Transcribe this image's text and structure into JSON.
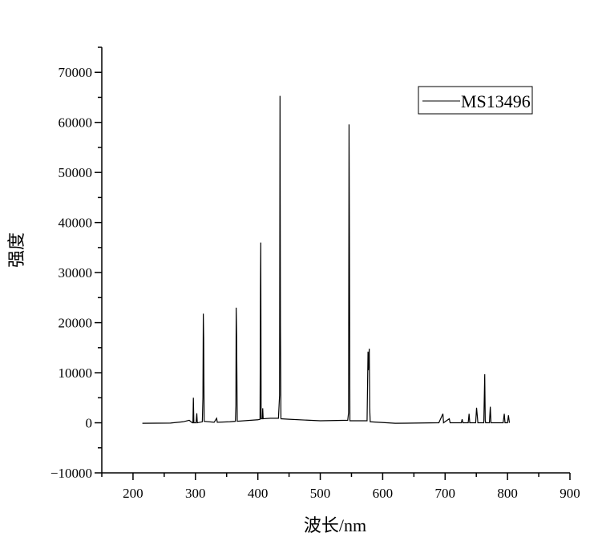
{
  "chart_data": {
    "type": "line",
    "title": "",
    "xlabel": "波长/nm",
    "ylabel": "强度",
    "xlim": [
      150,
      900
    ],
    "ylim": [
      -10000,
      75000
    ],
    "xticks": [
      200,
      300,
      400,
      500,
      600,
      700,
      800,
      900
    ],
    "yticks": [
      -10000,
      0,
      10000,
      20000,
      30000,
      40000,
      50000,
      60000,
      70000
    ],
    "xtick_labels": [
      "200",
      "300",
      "400",
      "500",
      "600",
      "700",
      "800",
      "900"
    ],
    "ytick_labels": [
      "−10000",
      "0",
      "10000",
      "20000",
      "30000",
      "40000",
      "50000",
      "60000",
      "70000"
    ],
    "grid": false,
    "legend": "top-right",
    "color": "#000000",
    "series": [
      {
        "name": "MS13496",
        "points": [
          [
            215,
            -100
          ],
          [
            260,
            -50
          ],
          [
            280,
            200
          ],
          [
            290,
            500
          ],
          [
            295,
            0
          ],
          [
            296,
            0
          ],
          [
            296.7,
            5000
          ],
          [
            297.5,
            0
          ],
          [
            301,
            0
          ],
          [
            302.2,
            1900
          ],
          [
            303,
            0
          ],
          [
            311,
            200
          ],
          [
            312,
            5000
          ],
          [
            312.6,
            21800
          ],
          [
            313.2,
            17000
          ],
          [
            314,
            300
          ],
          [
            330,
            100
          ],
          [
            334,
            900
          ],
          [
            335,
            100
          ],
          [
            355,
            200
          ],
          [
            364,
            300
          ],
          [
            364.8,
            3500
          ],
          [
            365.3,
            23000
          ],
          [
            366,
            17500
          ],
          [
            367,
            300
          ],
          [
            400,
            600
          ],
          [
            403.5,
            700
          ],
          [
            404.2,
            27000
          ],
          [
            404.7,
            36000
          ],
          [
            405.3,
            800
          ],
          [
            407.2,
            800
          ],
          [
            407.8,
            2900
          ],
          [
            408.5,
            800
          ],
          [
            420,
            900
          ],
          [
            433,
            900
          ],
          [
            434.8,
            5500
          ],
          [
            435.5,
            65300
          ],
          [
            436.2,
            19500
          ],
          [
            437,
            800
          ],
          [
            450,
            700
          ],
          [
            500,
            400
          ],
          [
            544,
            500
          ],
          [
            545.3,
            2000
          ],
          [
            546.1,
            59600
          ],
          [
            546.7,
            38000
          ],
          [
            547.5,
            400
          ],
          [
            575,
            400
          ],
          [
            576.5,
            14200
          ],
          [
            577,
            10500
          ],
          [
            578.5,
            14800
          ],
          [
            579.2,
            3000
          ],
          [
            580,
            200
          ],
          [
            620,
            -100
          ],
          [
            690,
            0
          ],
          [
            696.5,
            1800
          ],
          [
            697.5,
            0
          ],
          [
            706.7,
            800
          ],
          [
            708,
            0
          ],
          [
            726,
            0
          ],
          [
            727.3,
            700
          ],
          [
            728.5,
            0
          ],
          [
            737,
            0
          ],
          [
            738.4,
            1800
          ],
          [
            739.5,
            0
          ],
          [
            749,
            0
          ],
          [
            750.4,
            3000
          ],
          [
            751.5,
            1500
          ],
          [
            752.5,
            0
          ],
          [
            762,
            0
          ],
          [
            763.5,
            9700
          ],
          [
            764.3,
            500
          ],
          [
            765,
            0
          ],
          [
            771,
            0
          ],
          [
            772.4,
            3200
          ],
          [
            773.5,
            0
          ],
          [
            793,
            0
          ],
          [
            794.8,
            1800
          ],
          [
            796,
            0
          ],
          [
            800,
            0
          ],
          [
            801.5,
            1500
          ],
          [
            803,
            0
          ]
        ]
      }
    ]
  }
}
